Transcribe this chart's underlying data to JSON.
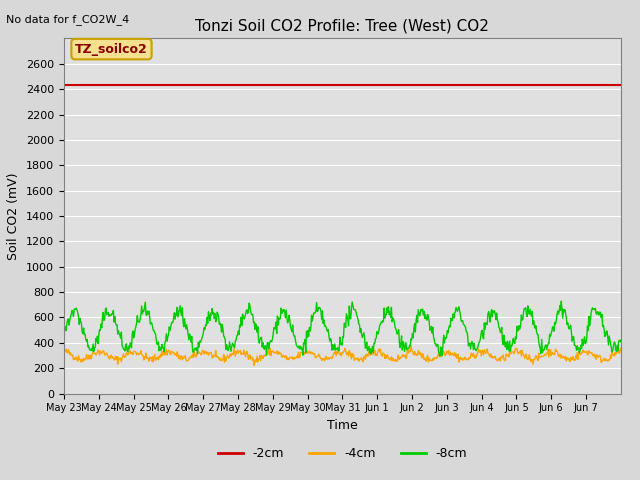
{
  "title": "Tonzi Soil CO2 Profile: Tree (West) CO2",
  "no_data_text": "No data for f_CO2W_4",
  "xlabel": "Time",
  "ylabel": "Soil CO2 (mV)",
  "ylim": [
    0,
    2800
  ],
  "yticks": [
    0,
    200,
    400,
    600,
    800,
    1000,
    1200,
    1400,
    1600,
    1800,
    2000,
    2200,
    2400,
    2600
  ],
  "plot_bg_color": "#e0e0e0",
  "legend_label": "TZ_soilco2",
  "legend_box_facecolor": "#f5e090",
  "legend_box_edgecolor": "#c8a000",
  "legend_text_color": "#8b0000",
  "red_line_y": 2430,
  "red_line_color": "#cc0000",
  "orange_line_color": "#ffa500",
  "green_line_color": "#00cc00",
  "line_labels": [
    "-2cm",
    "-4cm",
    "-8cm"
  ],
  "line_colors": [
    "#cc0000",
    "#ffa500",
    "#00cc00"
  ],
  "xtick_labels": [
    "May 23",
    "May 24",
    "May 25",
    "May 26",
    "May 27",
    "May 28",
    "May 29",
    "May 30",
    "May 31",
    "Jun 1",
    "Jun 2",
    "Jun 3",
    "Jun 4",
    "Jun 5",
    "Jun 6",
    "Jun 7"
  ],
  "n_days": 16,
  "seed": 42
}
